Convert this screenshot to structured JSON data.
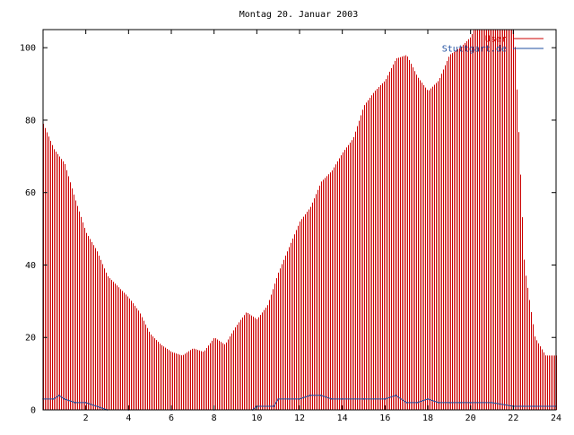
{
  "chart_data": {
    "type": "bar",
    "title": "Montag 20. Januar 2003",
    "xlabel": "",
    "ylabel": "",
    "xlim": [
      0,
      24
    ],
    "ylim": [
      0,
      105
    ],
    "x_ticks": [
      2,
      4,
      6,
      8,
      10,
      12,
      14,
      16,
      18,
      20,
      22,
      24
    ],
    "y_ticks": [
      0,
      20,
      40,
      60,
      80,
      100
    ],
    "grid": false,
    "legend_position": "top-right",
    "series": [
      {
        "name": "User",
        "color": "#cc0000",
        "style": "impulses",
        "x": [
          0,
          0.5,
          1,
          1.5,
          2,
          2.5,
          3,
          3.5,
          4,
          4.5,
          5,
          5.5,
          6,
          6.5,
          7,
          7.5,
          8,
          8.5,
          9,
          9.5,
          10,
          10.5,
          11,
          11.5,
          12,
          12.5,
          13,
          13.5,
          14,
          14.5,
          15,
          15.5,
          16,
          16.5,
          17,
          17.5,
          18,
          18.5,
          19,
          19.5,
          20,
          20.5,
          21,
          21.5,
          22,
          22.5,
          23,
          23.5,
          24
        ],
        "y": [
          79,
          72,
          68,
          58,
          49,
          44,
          37,
          34,
          31,
          27,
          21,
          18,
          16,
          15,
          17,
          16,
          20,
          18,
          23,
          27,
          25,
          29,
          38,
          45,
          52,
          56,
          63,
          66,
          71,
          75,
          84,
          88,
          91,
          97,
          98,
          92,
          88,
          91,
          98,
          100,
          103,
          110,
          110,
          110,
          110,
          40,
          20,
          15,
          15
        ]
      },
      {
        "name": "Stuttgart.de",
        "color": "#1f4fa0",
        "style": "line",
        "x": [
          0,
          0.5,
          0.75,
          1,
          1.5,
          2,
          3,
          4,
          6,
          8,
          9.8,
          10,
          10.8,
          11,
          11.5,
          12,
          12.5,
          13,
          13.5,
          14,
          15,
          16,
          16.5,
          17,
          17.5,
          18,
          18.5,
          19,
          19.5,
          20,
          21,
          22,
          22.5,
          23,
          24
        ],
        "y": [
          3,
          3,
          4,
          3,
          2,
          2,
          0,
          0,
          0,
          0,
          0,
          1,
          1,
          3,
          3,
          3,
          4,
          4,
          3,
          3,
          3,
          3,
          4,
          2,
          2,
          3,
          2,
          2,
          2,
          2,
          2,
          1,
          1,
          1,
          1
        ]
      }
    ]
  }
}
